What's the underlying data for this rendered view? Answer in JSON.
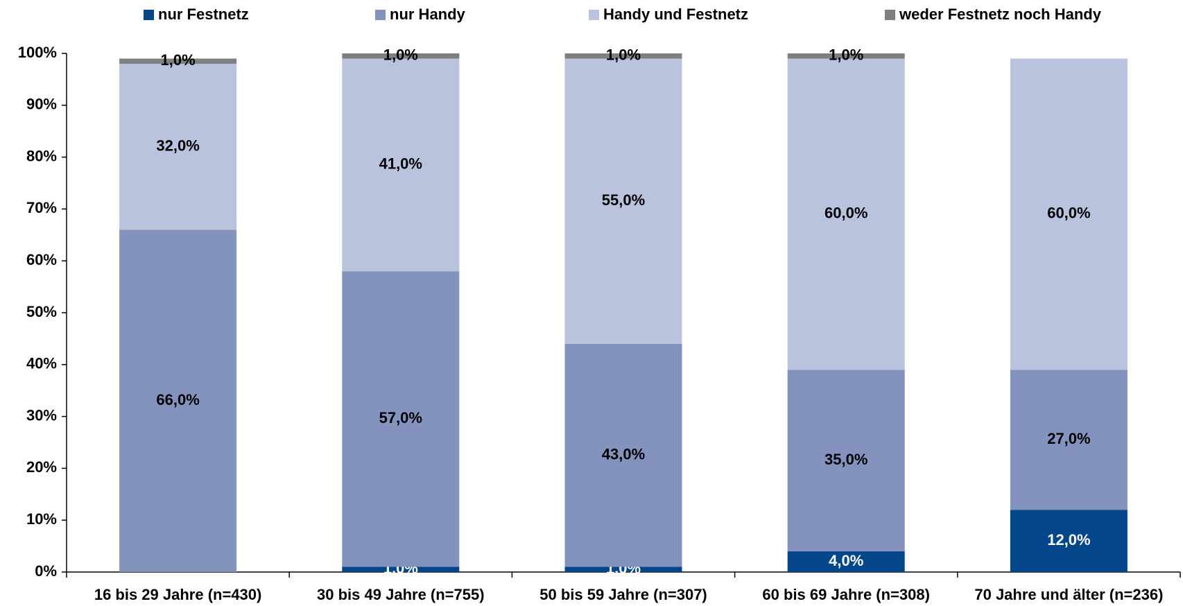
{
  "chart_data": {
    "type": "stacked_bar",
    "categories": [
      "16 bis 29 Jahre (n=430)",
      "30 bis 49 Jahre (n=755)",
      "50 bis 59 Jahre (n=307)",
      "60 bis 69 Jahre (n=308)",
      "70 Jahre und älter (n=236)"
    ],
    "series": [
      {
        "name": "nur Festnetz",
        "color": "#03468a",
        "values": [
          null,
          1,
          1,
          4,
          12
        ],
        "value_labels": [
          null,
          "1,0%",
          "1,0%",
          "4,0%",
          "12,0%"
        ]
      },
      {
        "name": "nur Handy",
        "color": "#8492be",
        "values": [
          66,
          57,
          43,
          35,
          27
        ],
        "value_labels": [
          "66,0%",
          "57,0%",
          "43,0%",
          "35,0%",
          "27,0%"
        ]
      },
      {
        "name": "Handy und Festnetz",
        "color": "#b9c3de",
        "values": [
          32,
          41,
          55,
          60,
          60
        ],
        "value_labels": [
          "32,0%",
          "41,0%",
          "55,0%",
          "60,0%",
          "60,0%"
        ]
      },
      {
        "name": "weder Festnetz noch Handy",
        "color": "#7f7f7f",
        "values": [
          1,
          1,
          1,
          1,
          null
        ],
        "value_labels": [
          "1,0%",
          "1,0%",
          "1,0%",
          "1,0%",
          null
        ]
      }
    ],
    "ylim": [
      0,
      100
    ],
    "yticks": [
      {
        "value": 0,
        "label": "0%"
      },
      {
        "value": 10,
        "label": "10%"
      },
      {
        "value": 20,
        "label": "20%"
      },
      {
        "value": 30,
        "label": "30%"
      },
      {
        "value": 40,
        "label": "40%"
      },
      {
        "value": 50,
        "label": "50%"
      },
      {
        "value": 60,
        "label": "60%"
      },
      {
        "value": 70,
        "label": "70%"
      },
      {
        "value": 80,
        "label": "80%"
      },
      {
        "value": 90,
        "label": "90%"
      },
      {
        "value": 100,
        "label": "100%"
      }
    ],
    "legend": "top"
  }
}
